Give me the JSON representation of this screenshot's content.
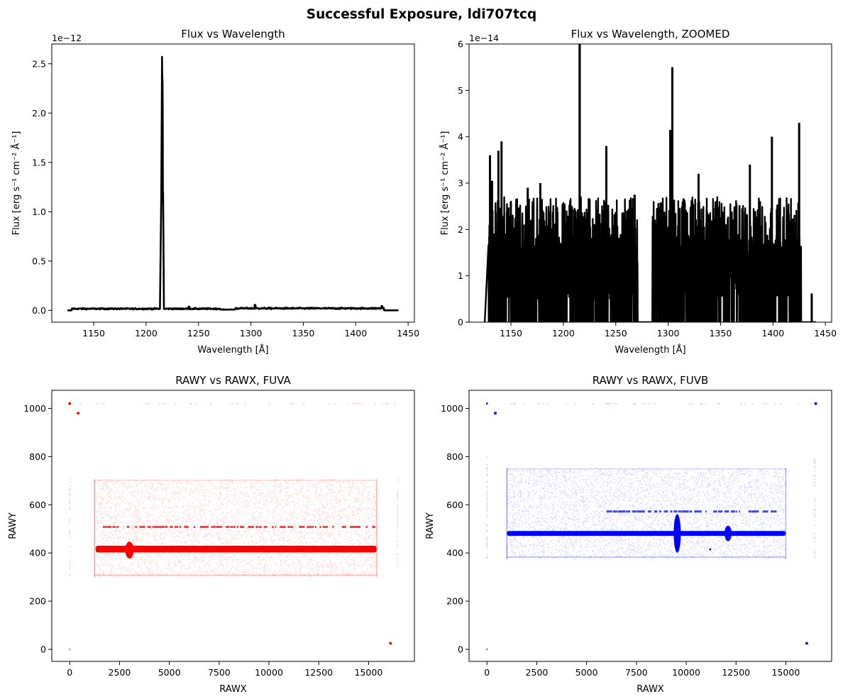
{
  "figure": {
    "title": "Successful Exposure, ldi707tcq"
  },
  "chart_data": [
    {
      "type": "line",
      "title": "Flux vs Wavelength",
      "xlabel": "Wavelength [Å]",
      "ylabel": "Flux [erg s⁻¹ cm⁻² Å⁻¹]",
      "xlim": [
        1110,
        1456
      ],
      "ylim": [
        -1.2e-13,
        2.7e-12
      ],
      "y_offset_text": "1e−12",
      "xticks": [
        1150,
        1200,
        1250,
        1300,
        1350,
        1400,
        1450
      ],
      "yticks": [
        0,
        0.5,
        1.0,
        1.5,
        2.0,
        2.5
      ],
      "ytick_labels": [
        "0.0",
        "0.5",
        "1.0",
        "1.5",
        "2.0",
        "2.5"
      ],
      "series": [
        {
          "name": "flux",
          "color": "#000000",
          "x": [
            1125,
            1129,
            1130,
            1150,
            1200,
            1213,
            1214.5,
            1215.2,
            1215.7,
            1216.2,
            1217,
            1230,
            1241,
            1250,
            1270,
            1285,
            1300,
            1305,
            1330,
            1380,
            1405,
            1425,
            1427,
            1437,
            1441
          ],
          "y": [
            0.0,
            0.0,
            2e-14,
            1.8e-14,
            1.5e-14,
            2e-14,
            1.2e-12,
            2.57e-12,
            2.3e-12,
            1.2e-12,
            1.5e-14,
            1.2e-14,
            3.8e-14,
            1e-14,
            5e-15,
            2e-14,
            2.5e-14,
            5.5e-14,
            2e-14,
            1.8e-14,
            4e-14,
            4.3e-14,
            0.0,
            6e-15,
            0.0
          ]
        }
      ]
    },
    {
      "type": "line",
      "title": "Flux vs Wavelength, ZOOMED",
      "xlabel": "Wavelength [Å]",
      "ylabel": "Flux [erg s⁻¹ cm⁻² Å⁻¹]",
      "xlim": [
        1110,
        1456
      ],
      "ylim": [
        0,
        6e-14
      ],
      "y_offset_text": "1e−14",
      "xticks": [
        1150,
        1200,
        1250,
        1300,
        1350,
        1400,
        1450
      ],
      "yticks": [
        0,
        1,
        2,
        3,
        4,
        5,
        6
      ],
      "ytick_labels": [
        "0",
        "1",
        "2",
        "3",
        "4",
        "5",
        "6"
      ],
      "gap_regions": [
        [
          1271,
          1285
        ],
        [
          1427,
          1436
        ]
      ],
      "peaks": [
        {
          "x": 1130,
          "y": 3.6e-14
        },
        {
          "x": 1132,
          "y": 3.05e-14
        },
        {
          "x": 1138,
          "y": 3.7e-14
        },
        {
          "x": 1141,
          "y": 3.9e-14
        },
        {
          "x": 1166,
          "y": 2.9e-14
        },
        {
          "x": 1178,
          "y": 3e-14
        },
        {
          "x": 1215.5,
          "y": 6e-14
        },
        {
          "x": 1241,
          "y": 3.8e-14
        },
        {
          "x": 1268,
          "y": 2.75e-14
        },
        {
          "x": 1302,
          "y": 4.15e-14
        },
        {
          "x": 1304,
          "y": 5.5e-14
        },
        {
          "x": 1329,
          "y": 3.2e-14
        },
        {
          "x": 1378,
          "y": 3.4e-14
        },
        {
          "x": 1399,
          "y": 4e-14
        },
        {
          "x": 1425,
          "y": 4.3e-14
        },
        {
          "x": 1437,
          "y": 6.2e-15
        }
      ],
      "series": [
        {
          "name": "flux",
          "color": "#000000"
        }
      ]
    },
    {
      "type": "scatter",
      "title": "RAWY vs RAWX, FUVA",
      "xlabel": "RAWX",
      "ylabel": "RAWY",
      "xlim": [
        -900,
        17300
      ],
      "ylim": [
        -50,
        1075
      ],
      "xticks": [
        0,
        2500,
        5000,
        7500,
        10000,
        12500,
        15000
      ],
      "yticks": [
        0,
        200,
        400,
        600,
        800,
        1000
      ],
      "color": "#ff0000",
      "regions": {
        "active_area": {
          "x": [
            1250,
            15400
          ],
          "y": [
            300,
            705
          ]
        },
        "spectrum_trace": {
          "x": [
            1300,
            15400
          ],
          "y_center": 416,
          "y_width": 28
        },
        "secondary_trace": {
          "x": [
            1500,
            15300
          ],
          "y": 508
        }
      },
      "markers": [
        {
          "x": 420,
          "y": 980
        },
        {
          "x": 16100,
          "y": 25
        },
        {
          "x": 0,
          "y": 1020
        },
        {
          "x": 0,
          "y": 0
        }
      ]
    },
    {
      "type": "scatter",
      "title": "RAWY vs RAWX, FUVB",
      "xlabel": "RAWX",
      "ylabel": "RAWY",
      "xlim": [
        -900,
        17300
      ],
      "ylim": [
        -50,
        1075
      ],
      "xticks": [
        0,
        2500,
        5000,
        7500,
        10000,
        12500,
        15000
      ],
      "yticks": [
        0,
        200,
        400,
        600,
        800,
        1000
      ],
      "color": "#0000ff",
      "regions": {
        "active_area": {
          "x": [
            1000,
            15000
          ],
          "y": [
            375,
            752
          ]
        },
        "spectrum_trace": {
          "x": [
            1000,
            15000
          ],
          "y_center": 481,
          "y_width": 20
        },
        "secondary_trace": {
          "x": [
            6000,
            14700
          ],
          "y": 572
        }
      },
      "markers": [
        {
          "x": 420,
          "y": 980
        },
        {
          "x": 16050,
          "y": 25
        },
        {
          "x": 16500,
          "y": 1020
        },
        {
          "x": 0,
          "y": 1020
        },
        {
          "x": 0,
          "y": 0
        },
        {
          "x": 11200,
          "y": 415
        }
      ]
    }
  ]
}
